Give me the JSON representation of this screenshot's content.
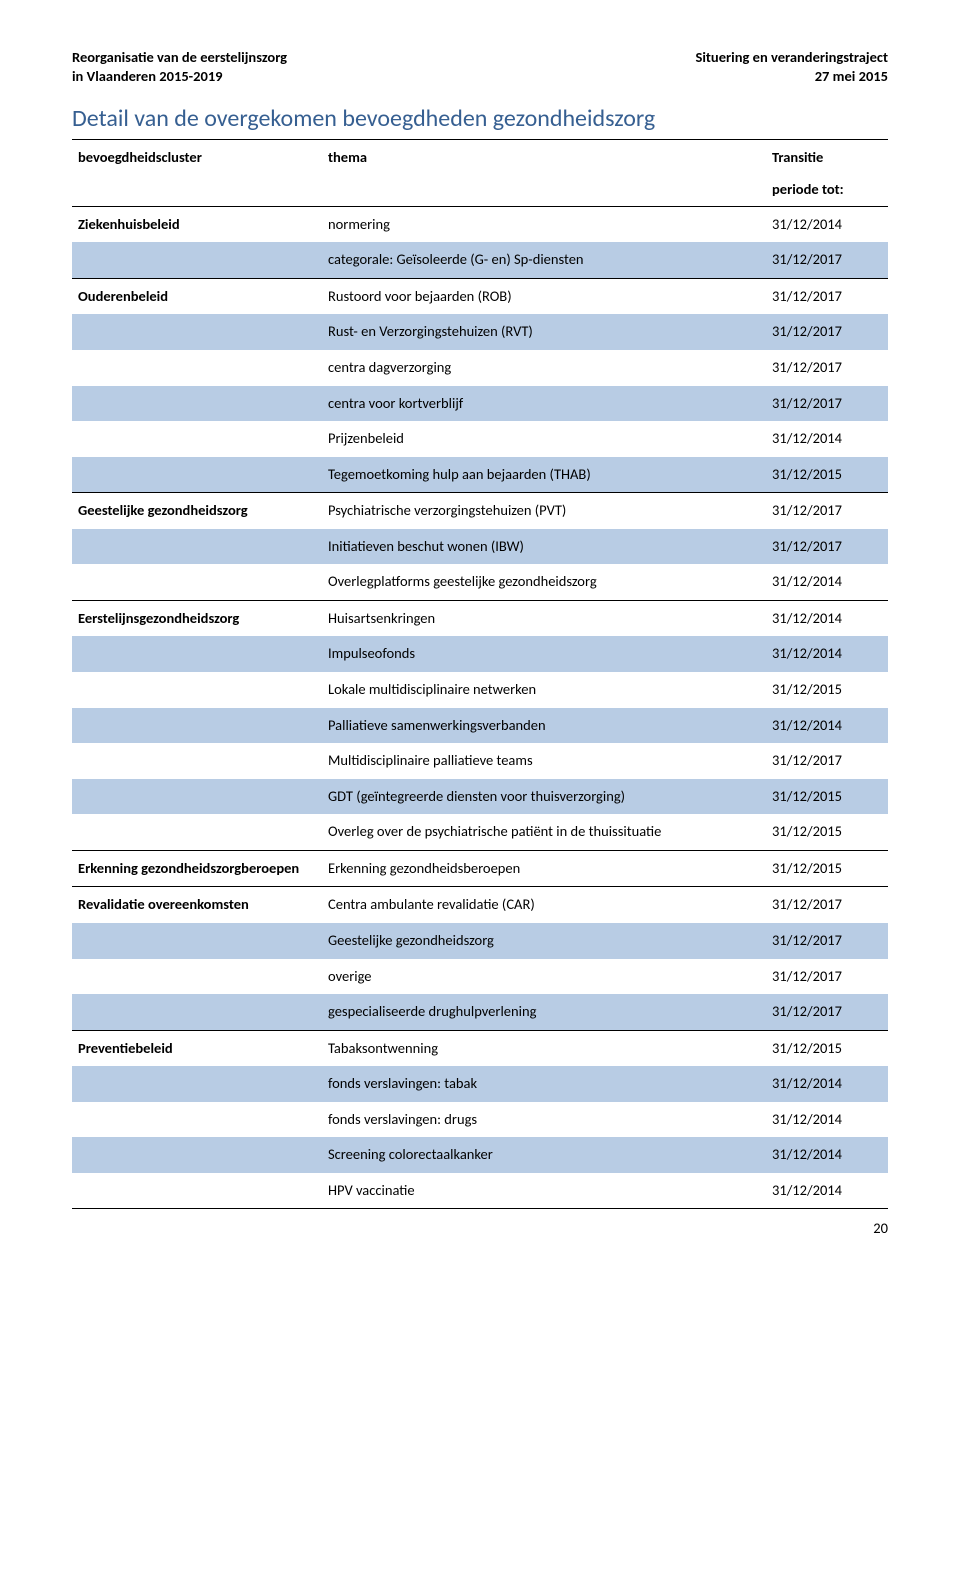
{
  "header": {
    "left_line1": "Reorganisatie van de eerstelijnszorg",
    "left_line2": "in Vlaanderen 2015-2019",
    "right_line1": "Situering en veranderingstraject",
    "right_line2": "27 mei 2015"
  },
  "title": "Detail van de overgekomen bevoegdheden gezondheidszorg",
  "columns": {
    "c0": "bevoegdheidscluster",
    "c1": "thema",
    "c2_a": "Transitie",
    "c2_b": "periode tot:"
  },
  "groups": [
    {
      "cluster": "Ziekenhuisbeleid",
      "rows": [
        {
          "thema": "normering",
          "datum": "31/12/2014",
          "band": false
        },
        {
          "thema": "categorale: Geïsoleerde (G- en) Sp-diensten",
          "datum": "31/12/2017",
          "band": true
        }
      ]
    },
    {
      "cluster": "Ouderenbeleid",
      "rows": [
        {
          "thema": "Rustoord voor bejaarden (ROB)",
          "datum": "31/12/2017",
          "band": false
        },
        {
          "thema": "Rust- en Verzorgingstehuizen (RVT)",
          "datum": "31/12/2017",
          "band": true
        },
        {
          "thema": "centra dagverzorging",
          "datum": "31/12/2017",
          "band": false
        },
        {
          "thema": "centra voor kortverblijf",
          "datum": "31/12/2017",
          "band": true
        },
        {
          "thema": "Prijzenbeleid",
          "datum": "31/12/2014",
          "band": false
        },
        {
          "thema": "Tegemoetkoming hulp aan bejaarden (THAB)",
          "datum": "31/12/2015",
          "band": true
        }
      ]
    },
    {
      "cluster": "Geestelijke gezondheidszorg",
      "rows": [
        {
          "thema": "Psychiatrische verzorgingstehuizen (PVT)",
          "datum": "31/12/2017",
          "band": false
        },
        {
          "thema": "Initiatieven beschut wonen (IBW)",
          "datum": "31/12/2017",
          "band": true
        },
        {
          "thema": "Overlegplatforms geestelijke gezondheidszorg",
          "datum": "31/12/2014",
          "band": false
        }
      ]
    },
    {
      "cluster": "Eerstelijnsgezondheidszorg",
      "rows": [
        {
          "thema": "Huisartsenkringen",
          "datum": "31/12/2014",
          "band": false
        },
        {
          "thema": "Impulseofonds",
          "datum": "31/12/2014",
          "band": true
        },
        {
          "thema": "Lokale multidisciplinaire netwerken",
          "datum": "31/12/2015",
          "band": false
        },
        {
          "thema": "Palliatieve samenwerkingsverbanden",
          "datum": "31/12/2014",
          "band": true
        },
        {
          "thema": "Multidisciplinaire palliatieve teams",
          "datum": "31/12/2017",
          "band": false
        },
        {
          "thema": "GDT (geïntegreerde diensten voor thuisverzorging)",
          "datum": "31/12/2015",
          "band": true
        },
        {
          "thema": "Overleg over de psychiatrische patiënt in de thuissituatie",
          "datum": "31/12/2015",
          "band": false
        }
      ]
    },
    {
      "cluster": "Erkenning gezondheidszorgberoepen",
      "rows": [
        {
          "thema": "Erkenning gezondheidsberoepen",
          "datum": "31/12/2015",
          "band": false
        }
      ]
    },
    {
      "cluster": "Revalidatie overeenkomsten",
      "rows": [
        {
          "thema": "Centra ambulante revalidatie (CAR)",
          "datum": "31/12/2017",
          "band": false
        },
        {
          "thema": "Geestelijke gezondheidszorg",
          "datum": "31/12/2017",
          "band": true
        },
        {
          "thema": "overige",
          "datum": "31/12/2017",
          "band": false
        },
        {
          "thema": "gespecialiseerde drughulpverlening",
          "datum": "31/12/2017",
          "band": true
        }
      ]
    },
    {
      "cluster": "Preventiebeleid",
      "rows": [
        {
          "thema": "Tabaksontwenning",
          "datum": "31/12/2015",
          "band": false
        },
        {
          "thema": "fonds verslavingen: tabak",
          "datum": "31/12/2014",
          "band": true
        },
        {
          "thema": "fonds verslavingen: drugs",
          "datum": "31/12/2014",
          "band": false
        },
        {
          "thema": "Screening colorectaalkanker",
          "datum": "31/12/2014",
          "band": true
        },
        {
          "thema": "HPV vaccinatie",
          "datum": "31/12/2014",
          "band": false
        }
      ]
    }
  ],
  "page_number": "20",
  "colors": {
    "heading": "#365f91",
    "band": "#b8cce4",
    "rule": "#000000"
  }
}
